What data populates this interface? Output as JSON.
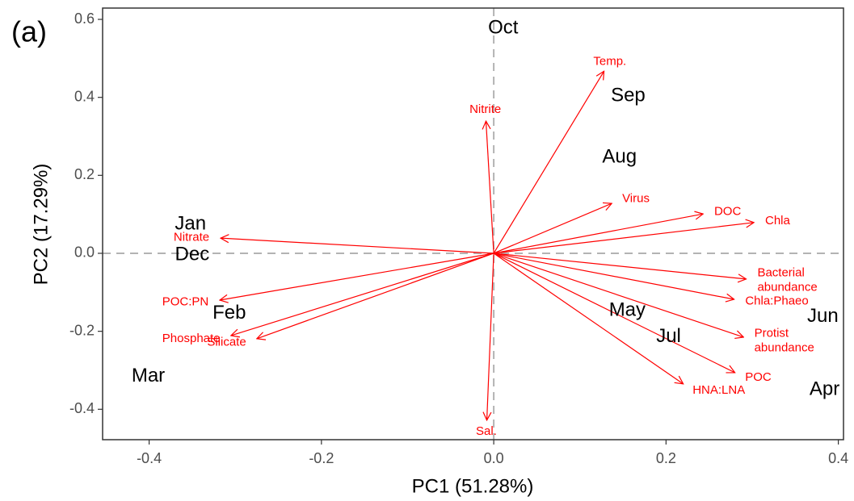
{
  "chart_data": {
    "type": "biplot",
    "panel_label": "(a)",
    "x_label": "PC1 (51.28%)",
    "y_label": "PC2 (17.29%)",
    "xlim": [
      -0.454,
      0.406
    ],
    "ylim": [
      -0.478,
      0.629
    ],
    "xticks": [
      -0.4,
      -0.2,
      {
        "value": 0,
        "label": "0.0"
      },
      0.2,
      0.4
    ],
    "yticks": [
      -0.4,
      -0.2,
      {
        "value": 0,
        "label": "0.0"
      },
      0.2,
      0.4,
      0.6
    ],
    "point_color": "#000000",
    "arrow_color": "#ff0000",
    "points": {
      "labels": [
        "Oct",
        "Sep",
        "Aug",
        "Jan",
        "Dec",
        "Feb",
        "Mar",
        "May",
        "Jul",
        "Jun",
        "Apr"
      ],
      "x": [
        0.011,
        0.156,
        0.146,
        -0.352,
        -0.35,
        -0.307,
        -0.401,
        0.155,
        0.203,
        0.382,
        0.384
      ],
      "y": [
        0.577,
        0.403,
        0.246,
        0.074,
        -0.004,
        -0.155,
        -0.316,
        -0.147,
        -0.215,
        -0.163,
        -0.35
      ]
    },
    "arrows": {
      "labels": [
        "Temp.",
        "Nitrite",
        "Virus",
        "DOC",
        "Chla",
        [
          "Bacterial",
          "abundance"
        ],
        "Chla:Phaeo",
        [
          "Protist",
          "abundance"
        ],
        "POC",
        "HNA:LNA",
        "Sal.",
        "Nitrate",
        "POC:PN",
        "Phosphate",
        "Silicate"
      ],
      "x": [
        0.128,
        -0.009,
        0.137,
        0.243,
        0.302,
        0.293,
        0.279,
        0.29,
        0.28,
        0.22,
        -0.008,
        -0.317,
        -0.318,
        -0.305,
        -0.275
      ],
      "y": [
        0.467,
        0.339,
        0.128,
        0.101,
        0.079,
        -0.066,
        -0.118,
        -0.215,
        -0.306,
        -0.335,
        -0.428,
        0.039,
        -0.12,
        -0.211,
        -0.219
      ]
    }
  }
}
